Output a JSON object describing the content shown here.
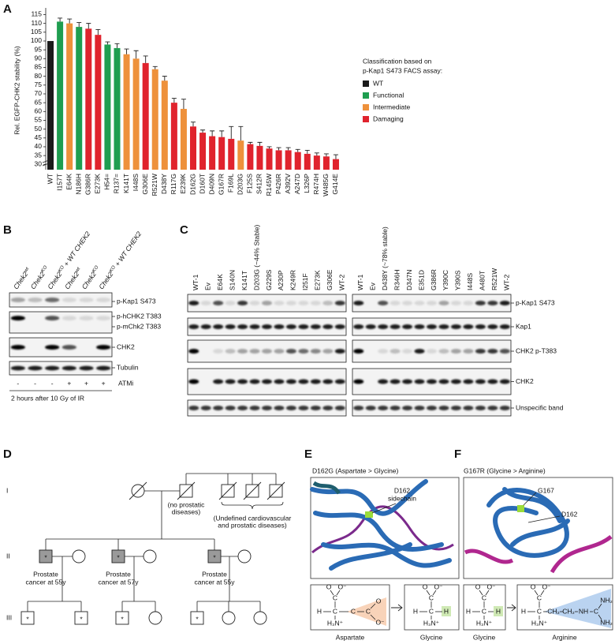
{
  "panel_labels": [
    "A",
    "B",
    "C",
    "D",
    "E",
    "F"
  ],
  "chart_data": {
    "type": "bar",
    "ylabel": "Rel. EGFP-CHK2 stability (%)",
    "categories": [
      "WT",
      "I157T",
      "E64K",
      "N186H",
      "G386R",
      "E273K",
      "H54=",
      "R137=",
      "K141T",
      "I448S",
      "G306E",
      "R521W",
      "D438Y",
      "R117G",
      "E239K",
      "D162G",
      "D160T",
      "D409N",
      "G167R",
      "F169L",
      "D203G",
      "F125S",
      "S412R",
      "R145W",
      "P426R",
      "A392V",
      "A247D",
      "L326P",
      "R474H",
      "W485G",
      "G414E"
    ],
    "series": [
      {
        "name": "WT",
        "color": "#1a1a1a",
        "values": [
          100,
          null,
          null,
          null,
          null,
          null,
          null,
          null,
          null,
          null,
          null,
          null,
          null,
          null,
          null,
          null,
          null,
          null,
          null,
          null,
          null,
          null,
          null,
          null,
          null,
          null,
          null,
          null,
          null,
          null,
          null
        ]
      },
      {
        "name": "Functional",
        "color": "#1f9e50",
        "values": [
          null,
          111,
          null,
          108,
          null,
          null,
          98,
          96,
          null,
          null,
          null,
          null,
          null,
          null,
          null,
          null,
          null,
          null,
          null,
          null,
          null,
          null,
          null,
          null,
          null,
          null,
          null,
          null,
          null,
          null,
          null
        ],
        "errors": [
          null,
          2,
          null,
          2.5,
          null,
          null,
          1.5,
          2.5,
          null,
          null,
          null,
          null,
          null,
          null,
          null,
          null,
          null,
          null,
          null,
          null,
          null,
          null,
          null,
          null,
          null,
          null,
          null,
          null,
          null,
          null,
          null
        ]
      },
      {
        "name": "Intermediate",
        "color": "#ee913b",
        "values": [
          null,
          null,
          110,
          null,
          null,
          null,
          null,
          null,
          92.5,
          90,
          null,
          84,
          77.5,
          null,
          61.5,
          null,
          null,
          null,
          null,
          null,
          43.5,
          null,
          null,
          null,
          null,
          null,
          null,
          null,
          null,
          null,
          null
        ],
        "errors": [
          null,
          null,
          2.5,
          null,
          null,
          null,
          null,
          null,
          3,
          4.5,
          null,
          1.5,
          2.5,
          null,
          5.5,
          null,
          null,
          null,
          null,
          null,
          8,
          null,
          null,
          null,
          null,
          null,
          null,
          null,
          null,
          null,
          null
        ]
      },
      {
        "name": "Damaging",
        "color": "#e0232d",
        "values": [
          null,
          null,
          null,
          null,
          107,
          103.5,
          null,
          null,
          null,
          null,
          87.5,
          null,
          null,
          65,
          null,
          51.5,
          48,
          46,
          45.5,
          44.5,
          null,
          41.5,
          40.5,
          39,
          38,
          38,
          37,
          36,
          35,
          34.5,
          33
        ],
        "errors": [
          null,
          null,
          null,
          null,
          3,
          3,
          null,
          null,
          null,
          null,
          4,
          null,
          null,
          2.5,
          null,
          2.5,
          1.5,
          3,
          3.5,
          7,
          null,
          1,
          2,
          1,
          1.5,
          1.5,
          1.5,
          2,
          1.5,
          1.5,
          2.5
        ]
      }
    ],
    "ylim": [
      27,
      117
    ],
    "yticks": [
      30,
      35,
      40,
      45,
      50,
      55,
      60,
      65,
      70,
      75,
      80,
      85,
      90,
      95,
      100,
      105,
      110,
      115
    ],
    "legend_title": [
      "Classification based on",
      "p-Kap1 S473 FACS assay:"
    ],
    "legend_position": "right"
  },
  "blot_b": {
    "columns": [
      {
        "name": "Chek2",
        "sup": "wt"
      },
      {
        "name": "Chek2",
        "sup": "KO"
      },
      {
        "name": "Chek2",
        "sup": "KO",
        "suffix": " + WT CHEK2"
      },
      {
        "name": "Chek2",
        "sup": "wt"
      },
      {
        "name": "Chek2",
        "sup": "KO"
      },
      {
        "name": "Chek2",
        "sup": "KO",
        "suffix": " + WT CHEK2"
      }
    ],
    "rows": [
      "p-Kap1 S473",
      "p-hCHK2 T383",
      "p-mChk2 T383",
      "CHK2",
      "Tubulin"
    ],
    "atmi": [
      "-",
      "-",
      "-",
      "+",
      "+",
      "+"
    ],
    "atmi_label": "ATMi",
    "caption": "2 hours after 10 Gy of IR"
  },
  "blot_c": {
    "left_lanes": [
      "WT-1",
      "Ev",
      "E64K",
      "S140N",
      "K141T",
      "D203G (~44% Stable)",
      "G229S",
      "A230P",
      "K249R",
      "I251F",
      "E273K",
      "G306E",
      "WT-2"
    ],
    "right_lanes": [
      "WT-1",
      "Ev",
      "D438Y (~78% stable)",
      "R346H",
      "D347N",
      "E351D",
      "G386R",
      "Y390C",
      "Y390S",
      "I448S",
      "A480T",
      "R521W",
      "WT-2"
    ],
    "rows": [
      "p-Kap1 S473",
      "Kap1",
      "CHK2 p-T383",
      "CHK2",
      "Unspecific band"
    ]
  },
  "pedigree": {
    "generations": [
      "I",
      "II",
      "III"
    ],
    "note_unaffected": [
      "(no prostatic",
      "diseases)"
    ],
    "note_undefined": [
      "(Undefined cardiovascular",
      "and prostatic diseases)"
    ],
    "affected": [
      [
        "Prostate",
        "cancer at 55y"
      ],
      [
        "Prostate",
        "cancer at 57y"
      ],
      [
        "Prostate",
        "cancer at 55y"
      ]
    ],
    "marker": "*"
  },
  "panel_e": {
    "title": "D162G (Aspartate > Glycine)",
    "callout": [
      "D162",
      "sidechain"
    ],
    "from": "Aspartate",
    "to": "Glycine"
  },
  "panel_f": {
    "title": "G167R (Glycine > Arginine)",
    "callouts": [
      "G167",
      "D162"
    ],
    "from": "Glycine",
    "to": "Arginine"
  },
  "chem": {
    "O": "O",
    "Ominus": "O⁻",
    "C": "C",
    "H": "H",
    "H3N": "H₃N⁺",
    "CH2": "CH₂",
    "NH": "NH",
    "NH2": "NH₂"
  }
}
